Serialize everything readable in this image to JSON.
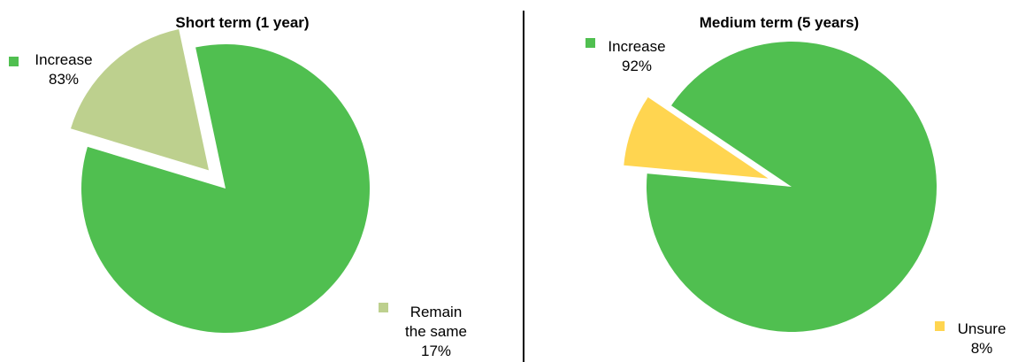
{
  "chart_data": [
    {
      "type": "pie",
      "title": "Short term (1 year)",
      "slices": [
        {
          "label": [
            "Increase"
          ],
          "value": 83,
          "value_label": "83%",
          "color": "#50bf50",
          "exploded": false
        },
        {
          "label": [
            "Remain",
            "the same"
          ],
          "value": 17,
          "value_label": "17%",
          "color": "#bdd08e",
          "exploded": true
        }
      ]
    },
    {
      "type": "pie",
      "title": "Medium term (5 years)",
      "slices": [
        {
          "label": [
            "Increase"
          ],
          "value": 92,
          "value_label": "92%",
          "color": "#50bf50",
          "exploded": false
        },
        {
          "label": [
            "Unsure"
          ],
          "value": 8,
          "value_label": "8%",
          "color": "#ffd550",
          "exploded": true
        }
      ]
    }
  ]
}
